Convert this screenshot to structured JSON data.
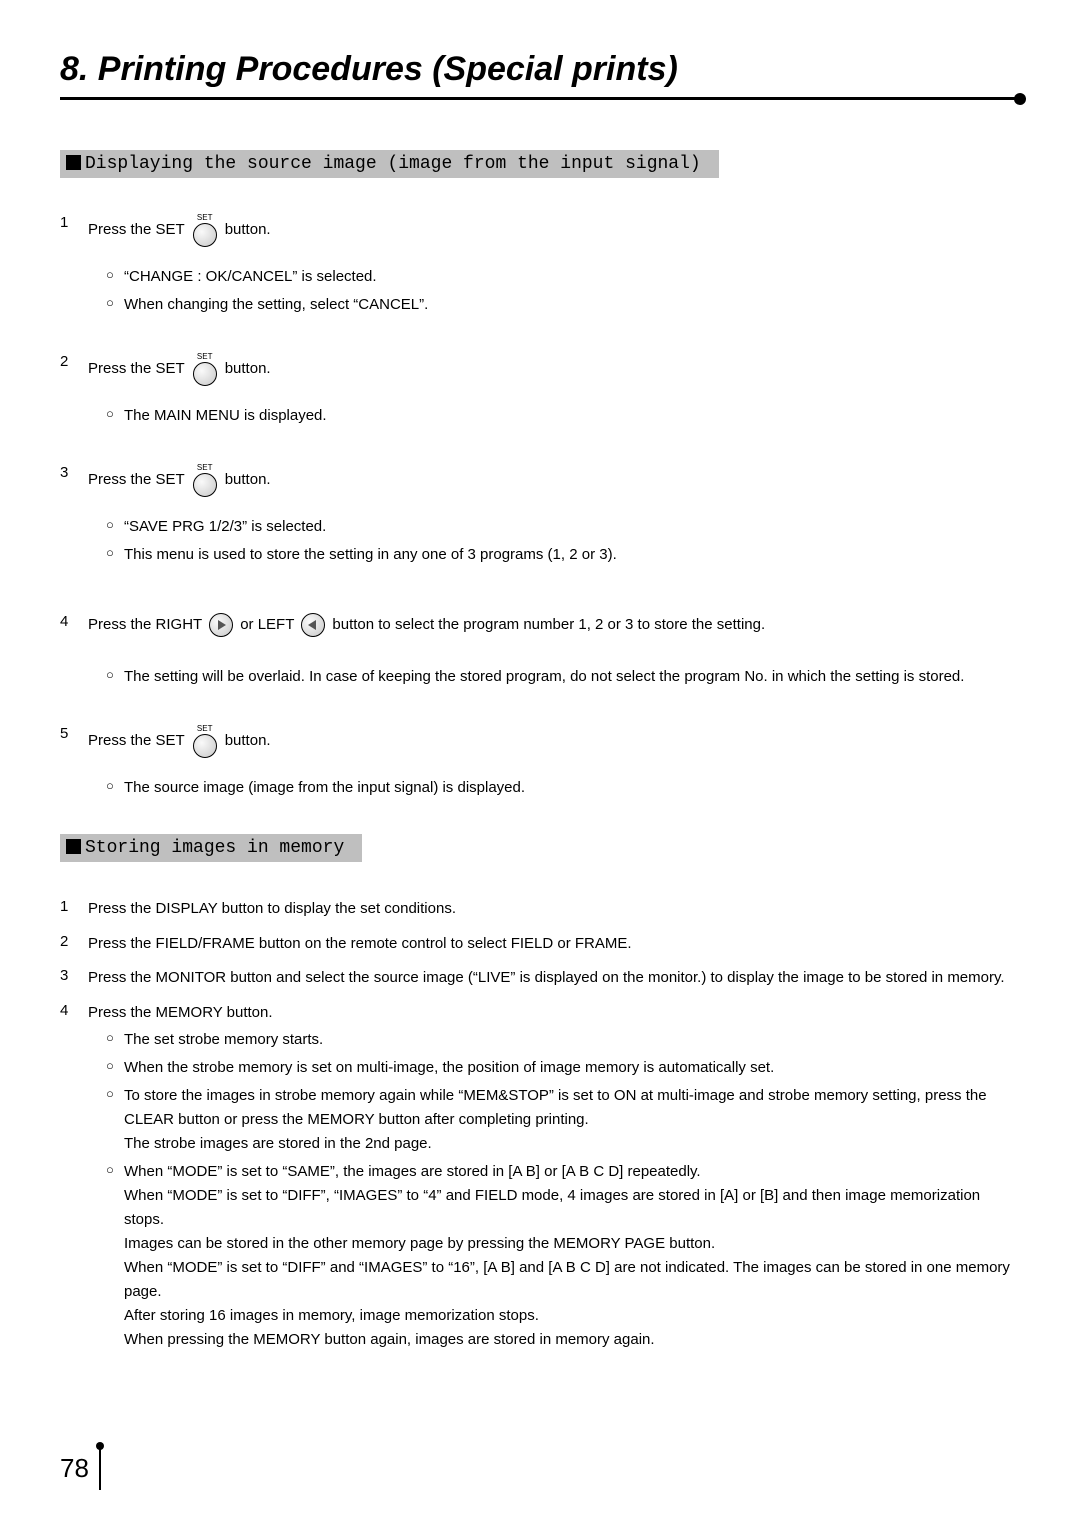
{
  "title": "8. Printing Procedures (Special prints)",
  "page_number": "78",
  "section1": {
    "header": "Displaying the source image (image from the input signal)",
    "steps": {
      "1": {
        "pre": "Press the SET",
        "post": "button.",
        "btn_label": "SET",
        "subs": {
          "a": "“CHANGE   : OK/CANCEL” is selected.",
          "b": "When changing the setting, select “CANCEL”."
        }
      },
      "2": {
        "pre": "Press the SET",
        "post": "button.",
        "btn_label": "SET",
        "subs": {
          "a": "The MAIN MENU is displayed."
        }
      },
      "3": {
        "pre": "Press the SET",
        "post": "button.",
        "btn_label": "SET",
        "subs": {
          "a": "“SAVE PRG 1/2/3” is selected.",
          "b": "This menu is used to store the setting in any one of 3 programs (1, 2 or 3)."
        }
      },
      "4": {
        "pre": "Press the  RIGHT",
        "mid": "or LEFT",
        "post": "button to select the program number 1, 2 or 3 to store the setting.",
        "subs": {
          "a": "The setting will be overlaid.  In case of keeping the stored program, do not select the program No. in which the setting is stored."
        }
      },
      "5": {
        "pre": "Press the SET",
        "post": "button.",
        "btn_label": "SET",
        "subs": {
          "a": "The source image (image from the input signal) is displayed."
        }
      }
    }
  },
  "section2": {
    "header": "Storing images in memory",
    "steps": {
      "1": "Press the DISPLAY button to display the set conditions.",
      "2": "Press the FIELD/FRAME button on the remote control to select FIELD or FRAME.",
      "3": "Press the MONITOR button and select the source image (“LIVE” is displayed on the monitor.) to display the image to be stored in memory.",
      "4": {
        "main": "Press the MEMORY button.",
        "subs": {
          "a": "The set strobe memory starts.",
          "b": "When the strobe memory is set on multi-image, the position of image memory is automatically set.",
          "c1": "To store the images in strobe memory again while “MEM&STOP” is set to ON at multi-image and strobe memory setting, press the CLEAR button or press the MEMORY button after completing printing.",
          "c2": "The strobe images are stored in the 2nd page.",
          "d1": "When “MODE” is set to “SAME”, the images are stored in [A B] or [A B C D] repeatedly.",
          "d2": "When “MODE” is set to “DIFF”, “IMAGES” to “4” and FIELD mode, 4 images are stored in [A] or [B] and then image memorization stops.",
          "d3": "Images can be stored in the other memory page by pressing the MEMORY PAGE button.",
          "d4": "When “MODE” is set to “DIFF” and “IMAGES” to “16”, [A B] and [A B C D] are not indicated.  The images can be stored in one memory page.",
          "d5": "After storing 16 images in memory, image memorization stops.",
          "d6": "When pressing the MEMORY button again, images are stored in memory again."
        }
      }
    }
  }
}
